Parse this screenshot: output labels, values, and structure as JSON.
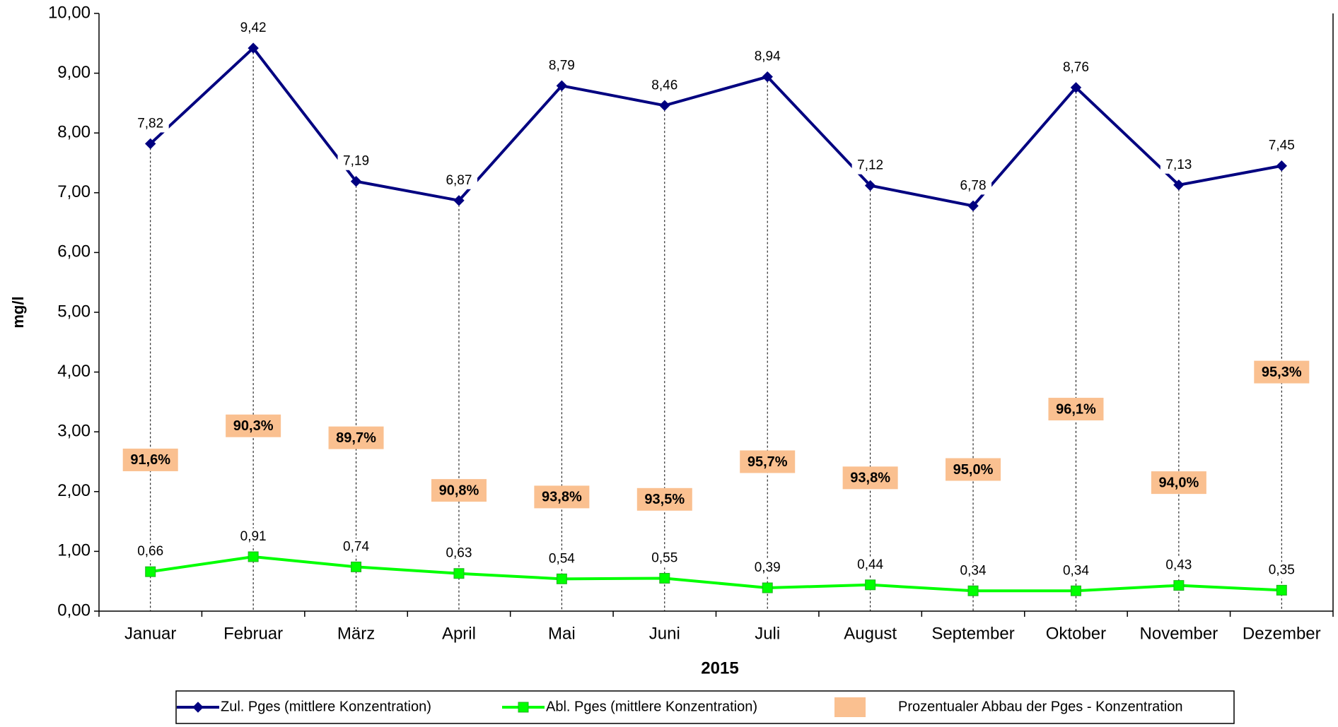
{
  "chart_data": {
    "type": "line",
    "y_label": "mg/l",
    "x_label": "2015",
    "categories": [
      "Januar",
      "Februar",
      "März",
      "April",
      "Mai",
      "Juni",
      "Juli",
      "August",
      "September",
      "Oktober",
      "November",
      "Dezember"
    ],
    "series": [
      {
        "name": "Zul. Pges (mittlere Konzentration)",
        "color": "#000080",
        "marker": "diamond",
        "values": [
          7.82,
          9.42,
          7.19,
          6.87,
          8.79,
          8.46,
          8.94,
          7.12,
          6.78,
          8.76,
          7.13,
          7.45
        ],
        "value_labels": [
          "7,82",
          "9,42",
          "7,19",
          "6,87",
          "8,79",
          "8,46",
          "8,94",
          "7,12",
          "6,78",
          "8,76",
          "7,13",
          "7,45"
        ]
      },
      {
        "name": "Abl. Pges (mittlere Konzentration)",
        "color": "#00ff00",
        "marker": "square",
        "values": [
          0.66,
          0.91,
          0.74,
          0.63,
          0.54,
          0.55,
          0.39,
          0.44,
          0.34,
          0.34,
          0.43,
          0.35
        ],
        "value_labels": [
          "0,66",
          "0,91",
          "0,74",
          "0,63",
          "0,54",
          "0,55",
          "0,39",
          "0,44",
          "0,34",
          "0,34",
          "0,43",
          "0,35"
        ]
      },
      {
        "name": "Prozentualer Abbau der Pges - Konzentration",
        "color": "#fac090",
        "kind": "label-box",
        "values": [
          91.6,
          90.3,
          89.7,
          90.8,
          93.8,
          93.5,
          95.7,
          93.8,
          95.0,
          96.1,
          94.0,
          95.3
        ],
        "value_labels": [
          "91,6%",
          "90,3%",
          "89,7%",
          "90,8%",
          "93,8%",
          "93,5%",
          "95,7%",
          "93,8%",
          "95,0%",
          "96,1%",
          "94,0%",
          "95,3%"
        ]
      }
    ],
    "ylim": [
      0,
      10
    ],
    "yticks": [
      {
        "value": 0,
        "label": "0,00"
      },
      {
        "value": 1,
        "label": "1,00"
      },
      {
        "value": 2,
        "label": "2,00"
      },
      {
        "value": 3,
        "label": "3,00"
      },
      {
        "value": 4,
        "label": "4,00"
      },
      {
        "value": 5,
        "label": "5,00"
      },
      {
        "value": 6,
        "label": "6,00"
      },
      {
        "value": 7,
        "label": "7,00"
      },
      {
        "value": 8,
        "label": "8,00"
      },
      {
        "value": 9,
        "label": "9,00"
      },
      {
        "value": 10,
        "label": "10,00"
      }
    ],
    "grid": false
  }
}
